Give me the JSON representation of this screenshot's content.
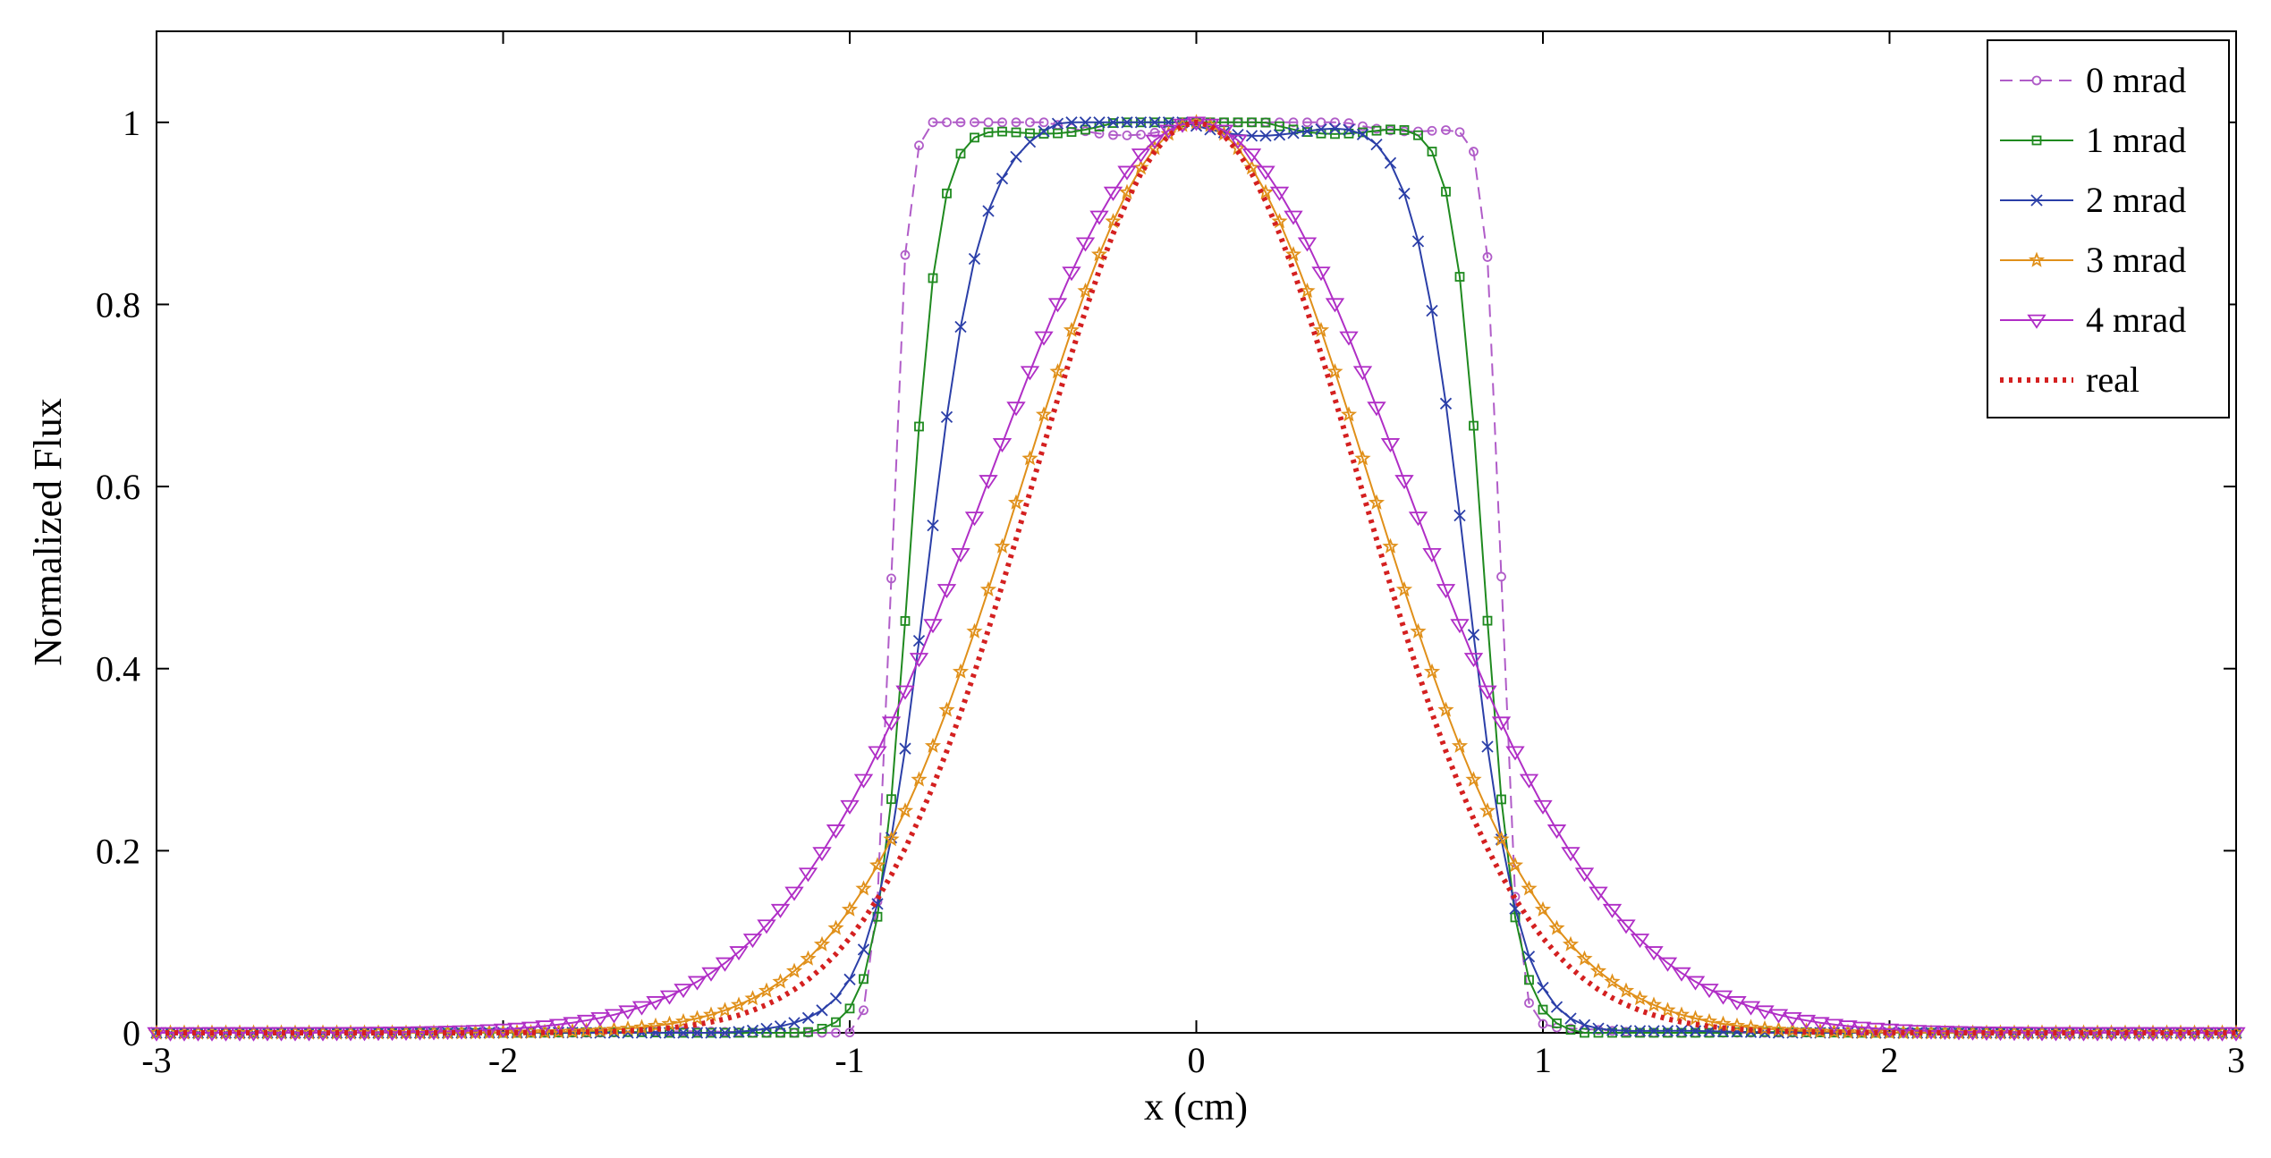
{
  "chart_data": {
    "type": "line",
    "title": "",
    "xlabel": "x (cm)",
    "ylabel": "Normalized Flux",
    "xlim": [
      -3,
      3
    ],
    "ylim": [
      0,
      1.1
    ],
    "xticks": [
      -3,
      -2,
      -1,
      0,
      1,
      2,
      3
    ],
    "yticks": [
      0,
      0.2,
      0.4,
      0.6,
      0.8,
      1
    ],
    "xtick_labels": [
      "-3",
      "-2",
      "-1",
      "0",
      "1",
      "2",
      "3"
    ],
    "ytick_labels": [
      "0",
      "0.2",
      "0.4",
      "0.6",
      "0.8",
      "1"
    ],
    "grid": false,
    "legend_position": "top-right",
    "series": [
      {
        "name": "0 mrad",
        "color": "#b05cc8",
        "style": "dashed",
        "marker": "circle",
        "profile": "flat-top",
        "halfwidth_cm": 0.88,
        "edge_cm": 0.05,
        "peak": 1.0
      },
      {
        "name": "1 mrad",
        "color": "#1f8a1f",
        "style": "solid",
        "marker": "square",
        "profile": "flat-top",
        "halfwidth_cm": 0.83,
        "edge_cm": 0.1,
        "peak": 1.0
      },
      {
        "name": "2 mrad",
        "color": "#2b3fa8",
        "style": "solid",
        "marker": "x",
        "profile": "flat-top",
        "halfwidth_cm": 0.78,
        "edge_cm": 0.17,
        "peak": 1.0
      },
      {
        "name": "3 mrad",
        "color": "#e0901a",
        "style": "solid",
        "marker": "star",
        "profile": "gaussian",
        "sigma_cm": 0.5,
        "peak": 1.0
      },
      {
        "name": "4 mrad",
        "color": "#b02ec6",
        "style": "solid",
        "marker": "triangle-down",
        "profile": "gaussian",
        "sigma_cm": 0.6,
        "peak": 1.0
      },
      {
        "name": "real",
        "color": "#d42020",
        "style": "dotted",
        "marker": "none",
        "profile": "gaussian",
        "sigma_cm": 0.47,
        "peak": 1.0
      }
    ]
  }
}
